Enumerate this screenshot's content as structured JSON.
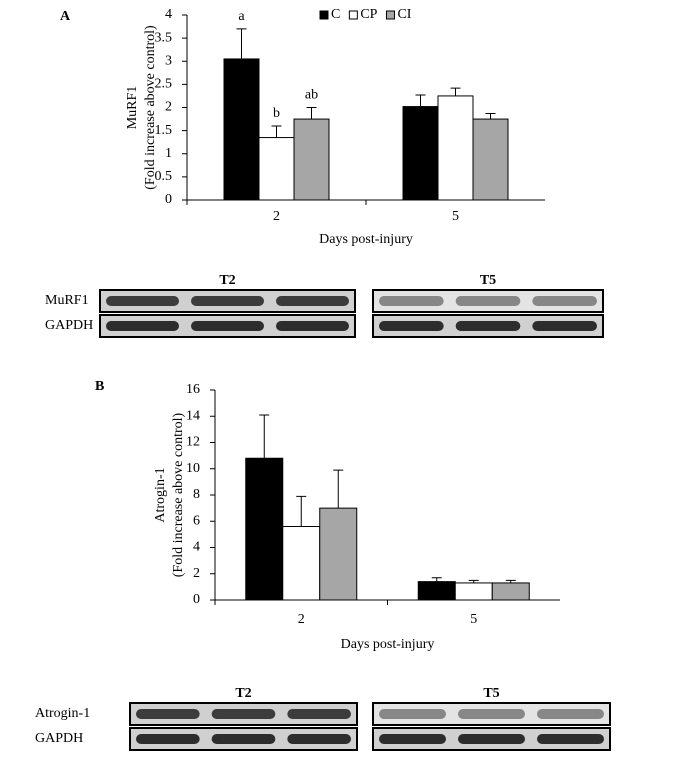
{
  "chart_data": [
    {
      "type": "bar",
      "panel": "A",
      "y_label": [
        "MuRF1",
        "(Fold increase above control)"
      ],
      "x_label": "Days post-injury",
      "categories": [
        "2",
        "5"
      ],
      "series": [
        {
          "name": "C",
          "color": "#000000",
          "values": [
            3.05,
            2.02
          ],
          "errors": [
            0.65,
            0.25
          ],
          "annotations": [
            "a",
            null
          ]
        },
        {
          "name": "CP",
          "color": "#ffffff",
          "values": [
            1.35,
            2.25
          ],
          "errors": [
            0.25,
            0.17
          ],
          "annotations": [
            "b",
            null
          ]
        },
        {
          "name": "CI",
          "color": "#a6a6a6",
          "values": [
            1.75,
            1.75
          ],
          "errors": [
            0.25,
            0.12
          ],
          "annotations": [
            "ab",
            null
          ]
        }
      ],
      "ylim": [
        0,
        4
      ],
      "yticks": [
        0,
        0.5,
        1,
        1.5,
        2,
        2.5,
        3,
        3.5,
        4
      ],
      "legend": "top",
      "blot": {
        "groups": [
          "T2",
          "T5"
        ],
        "rows": [
          "MuRF1",
          "GAPDH"
        ]
      }
    },
    {
      "type": "bar",
      "panel": "B",
      "y_label": [
        "Atrogin-1",
        "(Fold increase above control)"
      ],
      "x_label": "Days post-injury",
      "categories": [
        "2",
        "5"
      ],
      "series": [
        {
          "color": "#000000",
          "values": [
            10.8,
            1.4
          ],
          "errors": [
            3.3,
            0.3
          ]
        },
        {
          "color": "#ffffff",
          "values": [
            5.6,
            1.3
          ],
          "errors": [
            2.3,
            0.2
          ]
        },
        {
          "color": "#a6a6a6",
          "values": [
            7.0,
            1.3
          ],
          "errors": [
            2.9,
            0.2
          ]
        }
      ],
      "ylim": [
        0,
        16
      ],
      "yticks": [
        0,
        2,
        4,
        6,
        8,
        10,
        12,
        14,
        16
      ],
      "blot": {
        "groups": [
          "T2",
          "T5"
        ],
        "rows": [
          "Atrogin-1",
          "GAPDH"
        ]
      }
    }
  ]
}
